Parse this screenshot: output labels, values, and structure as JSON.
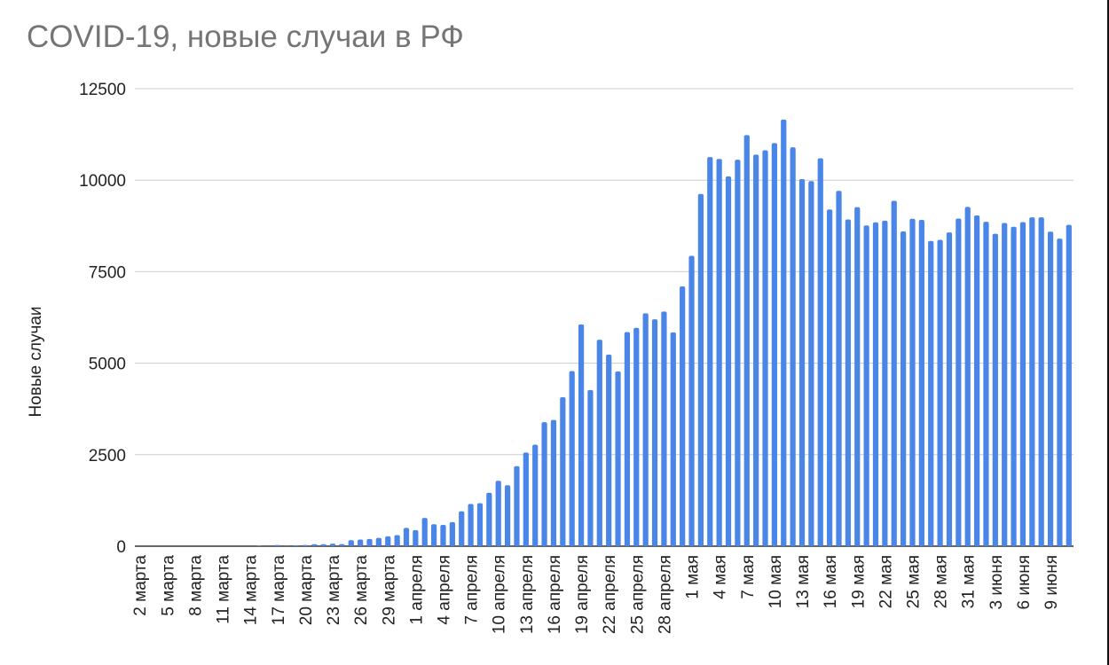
{
  "chart_data": {
    "type": "bar",
    "title": "COVID-19, новые случаи в РФ",
    "ylabel": "Новые случаи",
    "xlabel": "",
    "ylim": [
      0,
      12500
    ],
    "yticks": [
      0,
      2500,
      5000,
      7500,
      10000,
      12500
    ],
    "grid": true,
    "legend": "none",
    "bar_color": "#4a86e8",
    "x_tick_labels": [
      "2 марта",
      "5 марта",
      "8 марта",
      "11 марта",
      "14 марта",
      "17 марта",
      "20 марта",
      "23 марта",
      "26 марта",
      "29 марта",
      "1 апреля",
      "4 апреля",
      "7 апреля",
      "10 апреля",
      "13 апреля",
      "16 апреля",
      "19 апреля",
      "22 апреля",
      "25 апреля",
      "28 апреля",
      "1 мая",
      "4 мая",
      "7 мая",
      "10 мая",
      "13 мая",
      "16 мая",
      "19 мая",
      "22 мая",
      "25 мая",
      "28 мая",
      "31 мая",
      "3 июня",
      "6 июня",
      "9 июня"
    ],
    "series": [
      {
        "values": [
          0,
          0,
          0,
          0,
          0,
          0,
          0,
          0,
          0,
          0,
          0,
          0,
          0,
          10,
          0,
          33,
          4,
          27,
          33,
          53,
          54,
          71,
          57,
          163,
          182,
          196,
          228,
          270,
          302,
          501,
          440,
          771,
          601,
          582,
          658,
          954,
          1154,
          1175,
          1459,
          1786,
          1667,
          2186,
          2558,
          2774,
          3388,
          3448,
          4070,
          4785,
          6060,
          4268,
          5642,
          5236,
          4774,
          5849,
          5966,
          6361,
          6198,
          6411,
          5841,
          7099,
          7933,
          9623,
          10633,
          10581,
          10102,
          10559,
          11231,
          10699,
          10817,
          11012,
          11656,
          10899,
          10028,
          9974,
          10598,
          9200,
          9709,
          8926,
          9263,
          8764,
          8849,
          8894,
          9434,
          8599,
          8946,
          8915,
          8338,
          8371,
          8572,
          8952,
          9268,
          9035,
          8863,
          8536,
          8831,
          8726,
          8855,
          8985,
          8984,
          8595,
          8404,
          8779
        ]
      }
    ]
  }
}
